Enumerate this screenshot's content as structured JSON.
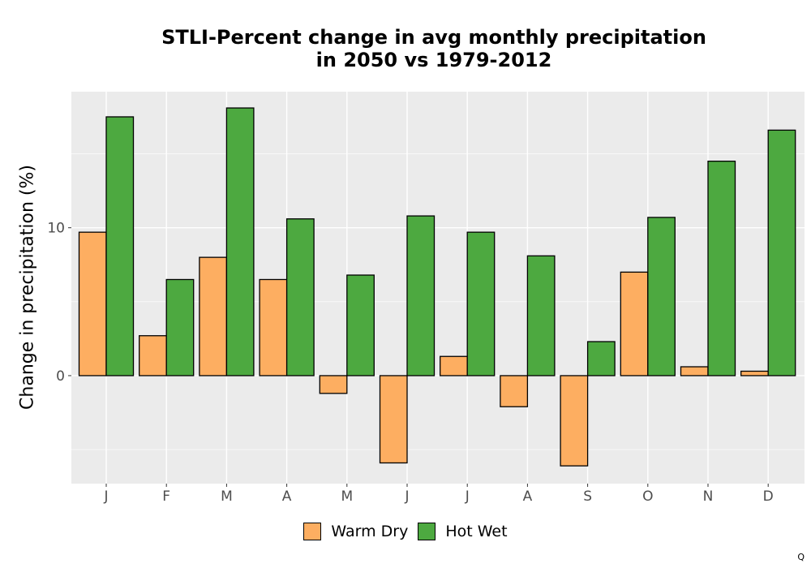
{
  "chart_data": {
    "type": "bar",
    "title_line1": "STLI-Percent change in avg monthly precipitation",
    "title_line2": "in 2050 vs 1979-2012",
    "xlabel": "",
    "ylabel": "Change in precipitation (%)",
    "categories": [
      "J",
      "F",
      "M",
      "A",
      "M",
      "J",
      "J",
      "A",
      "S",
      "O",
      "N",
      "D"
    ],
    "series": [
      {
        "name": "Warm Dry",
        "color": "#FDAE61",
        "values": [
          9.7,
          2.7,
          8.0,
          6.5,
          -1.2,
          -5.9,
          1.3,
          -2.1,
          -6.1,
          7.0,
          0.6,
          0.3
        ]
      },
      {
        "name": "Hot Wet",
        "color": "#4DA940",
        "values": [
          17.5,
          6.5,
          18.1,
          10.6,
          6.8,
          10.8,
          9.7,
          8.1,
          2.3,
          10.7,
          14.5,
          16.6
        ]
      }
    ],
    "ylim": [
      -7.3,
      19.2
    ],
    "yticks": [
      0,
      10
    ],
    "grid": true,
    "legend_position": "bottom"
  },
  "corner_mark": "Q"
}
